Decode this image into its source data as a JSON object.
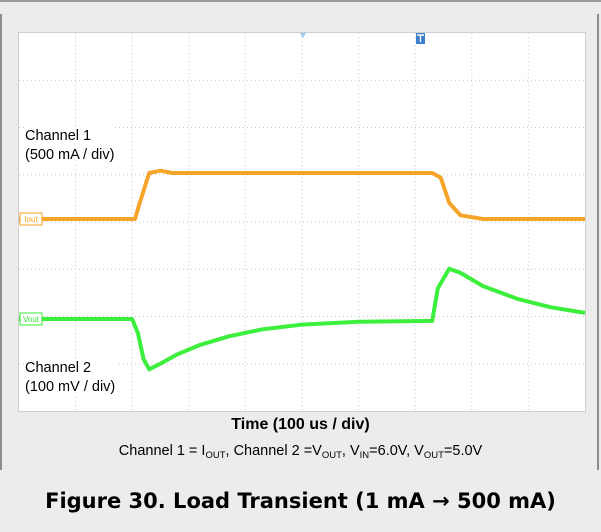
{
  "chart_data": {
    "type": "line",
    "xlabel": "Time (100 us / div)",
    "condition_parts": [
      "Channel 1 = I",
      "OUT",
      ", Channel 2 =V",
      "OUT",
      ", V",
      "IN",
      "=6.0V, V",
      "OUT",
      "=5.0V"
    ],
    "title": "Figure 30. Load Transient (1 mA → 500 mA)",
    "x_divisions": 10,
    "y_divisions": 8,
    "series": [
      {
        "name": "Iout",
        "channel_label": "Channel 1",
        "scale_label": "(500 mA / div)",
        "color": "#f5a020",
        "x": [
          0,
          2.05,
          2.12,
          2.3,
          2.5,
          2.7,
          3.0,
          5.0,
          7.3,
          7.45,
          7.6,
          7.8,
          8.2,
          10
        ],
        "y": [
          0,
          0,
          0.3,
          1.0,
          1.05,
          1.0,
          1.0,
          1.0,
          1.0,
          0.9,
          0.35,
          0.08,
          0.0,
          0
        ]
      },
      {
        "name": "Vout",
        "channel_label": "Channel 2",
        "scale_label": "(100 mV / div)",
        "color": "#33ee33",
        "x": [
          0,
          2.0,
          2.1,
          2.2,
          2.3,
          2.5,
          2.8,
          3.2,
          3.7,
          4.3,
          5.0,
          6.0,
          7.3,
          7.4,
          7.6,
          7.8,
          8.2,
          8.8,
          9.4,
          10
        ],
        "y": [
          0,
          0,
          -0.3,
          -0.85,
          -1.07,
          -0.95,
          -0.75,
          -0.55,
          -0.37,
          -0.22,
          -0.12,
          -0.06,
          -0.04,
          0.65,
          1.07,
          0.98,
          0.7,
          0.43,
          0.25,
          0.13
        ]
      }
    ]
  }
}
